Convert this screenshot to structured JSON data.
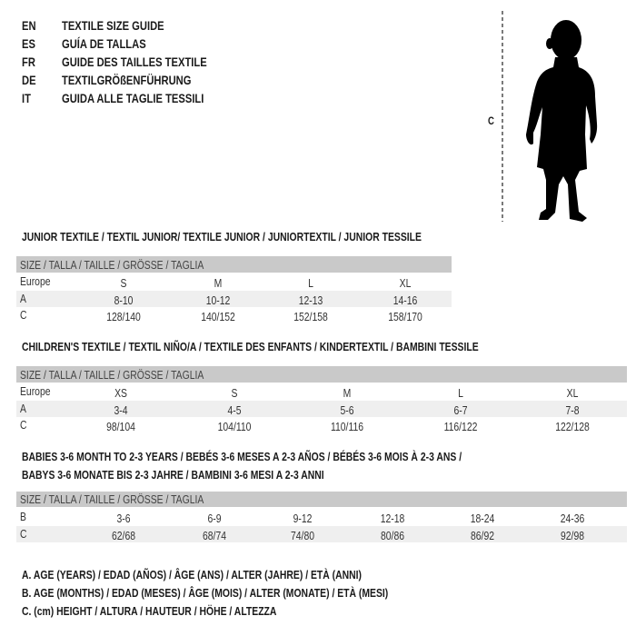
{
  "titles": [
    {
      "lang": "EN",
      "text": "TEXTILE SIZE GUIDE"
    },
    {
      "lang": "ES",
      "text": "GUÍA DE TALLAS"
    },
    {
      "lang": "FR",
      "text": "GUIDE DES TAILLES TEXTILE"
    },
    {
      "lang": "DE",
      "text": "TEXTILGRÖßENFÜHRUNG"
    },
    {
      "lang": "IT",
      "text": "GUIDA ALLE TAGLIE TESSILI"
    }
  ],
  "figure": {
    "measure_label": "C"
  },
  "size_header": "SIZE / TALLA / TAILLE / GRÖSSE / TAGLIA",
  "junior": {
    "title": "JUNIOR TEXTILE / TEXTIL JUNIOR/ TEXTILE JUNIOR / JUNIORTEXTIL / JUNIOR TESSILE",
    "rows": [
      {
        "label": "Europe",
        "values": [
          "S",
          "M",
          "L",
          "XL"
        ]
      },
      {
        "label": "A",
        "values": [
          "8-10",
          "10-12",
          "12-13",
          "14-16"
        ]
      },
      {
        "label": "C",
        "values": [
          "128/140",
          "140/152",
          "152/158",
          "158/170"
        ]
      }
    ]
  },
  "children": {
    "title": "CHILDREN'S TEXTILE / TEXTIL NIÑO/A / TEXTILE DES ENFANTS / KINDERTEXTIL / BAMBINI TESSILE",
    "rows": [
      {
        "label": "Europe",
        "values": [
          "XS",
          "S",
          "M",
          "L",
          "XL"
        ]
      },
      {
        "label": "A",
        "values": [
          "3-4",
          "4-5",
          "5-6",
          "6-7",
          "7-8"
        ]
      },
      {
        "label": "C",
        "values": [
          "98/104",
          "104/110",
          "110/116",
          "116/122",
          "122/128"
        ]
      }
    ]
  },
  "babies": {
    "title_line1": "BABIES 3-6 MONTH TO 2-3 YEARS / BEBÉS 3-6 MESES A 2-3 AÑOS / BÉBÉS 3-6 MOIS À 2-3 ANS /",
    "title_line2": "BABYS 3-6 MONATE BIS 2-3 JAHRE / BAMBINI 3-6 MESI A 2-3 ANNI",
    "rows": [
      {
        "label": "B",
        "values": [
          "3-6",
          "6-9",
          "9-12",
          "12-18",
          "18-24",
          "24-36"
        ]
      },
      {
        "label": "C",
        "values": [
          "62/68",
          "68/74",
          "74/80",
          "80/86",
          "86/92",
          "92/98"
        ]
      }
    ]
  },
  "legend": [
    "A. AGE (YEARS) / EDAD (AÑOS) / ÂGE (ANS) / ALTER (JAHRE) / ETÀ (ANNI)",
    "B. AGE (MONTHS) / EDAD (MESES) / ÂGE (MOIS) / ALTER (MONATE) / ETÀ (MESI)",
    "C. (cm) HEIGHT / ALTURA / HAUTEUR / HÖHE / ALTEZZA"
  ]
}
